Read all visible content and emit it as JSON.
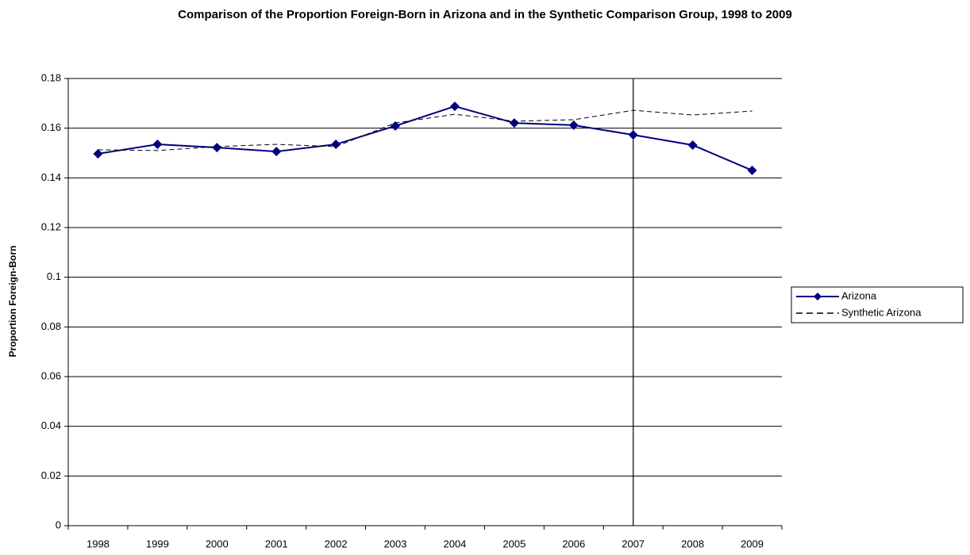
{
  "chart_data": {
    "type": "line",
    "title": "Comparison of the Proportion Foreign-Born in Arizona and in the Synthetic Comparison Group, 1998 to 2009",
    "y_label": "Proportion Foreign-Born",
    "categories": [
      "1998",
      "1999",
      "2000",
      "2001",
      "2002",
      "2003",
      "2004",
      "2005",
      "2006",
      "2007",
      "2008",
      "2009"
    ],
    "series": [
      {
        "name": "Arizona",
        "color": "#000080",
        "marker": "diamond",
        "dash": "solid",
        "values": [
          0.1497,
          0.1535,
          0.1522,
          0.1506,
          0.1535,
          0.1609,
          0.1688,
          0.1621,
          0.1612,
          0.1573,
          0.1532,
          0.143
        ]
      },
      {
        "name": "Synthetic Arizona",
        "color": "#000000",
        "marker": "none",
        "dash": "dashed",
        "values": [
          0.1513,
          0.151,
          0.1526,
          0.1535,
          0.1526,
          0.1621,
          0.1656,
          0.1628,
          0.1634,
          0.1672,
          0.1653,
          0.1669
        ]
      }
    ],
    "ylim": [
      0,
      0.18
    ],
    "yticks": [
      0,
      0.02,
      0.04,
      0.06,
      0.08,
      0.1,
      0.12,
      0.14,
      0.16,
      0.18
    ],
    "grid": true,
    "vline": "2007",
    "legend": "right"
  }
}
